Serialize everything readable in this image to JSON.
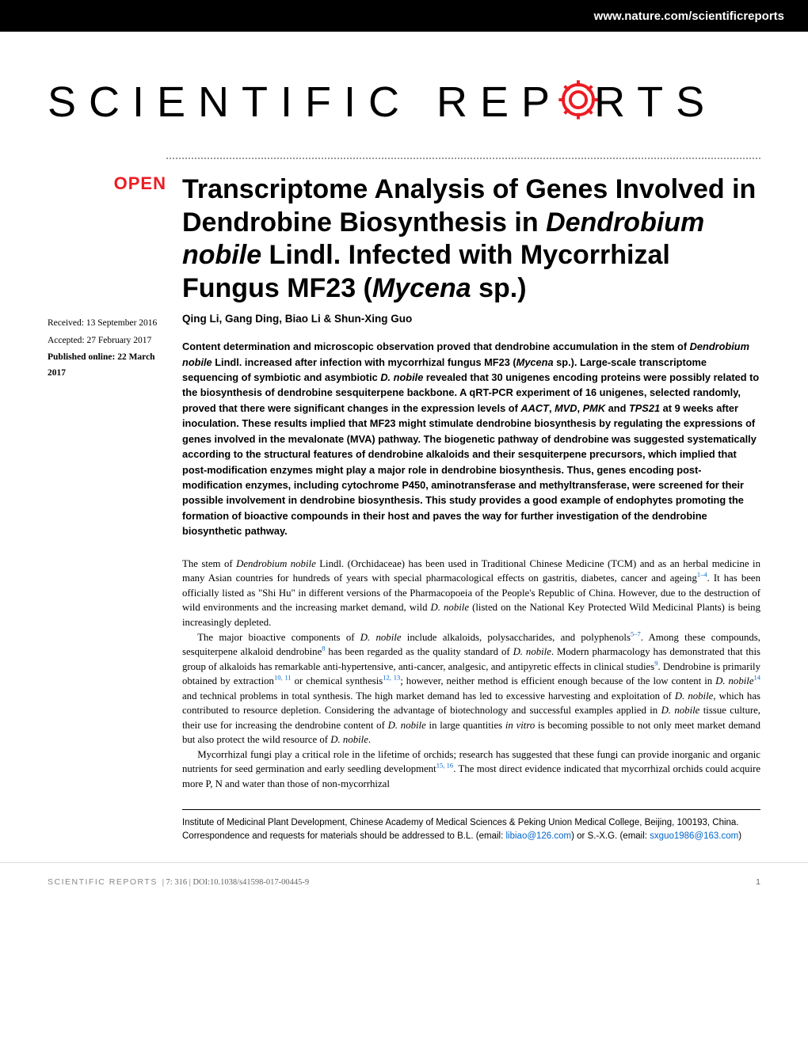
{
  "header": {
    "url": "www.nature.com/scientificreports"
  },
  "logo": {
    "text_before": "SCIENTIFIC",
    "text_after": "RTS",
    "text_rep": " REP",
    "accent_color": "#ec1c24",
    "font_size": 54,
    "letter_spacing": 16
  },
  "open_badge": {
    "label": "OPEN",
    "color": "#ec1c24"
  },
  "dates": {
    "received": "Received: 13 September 2016",
    "accepted": "Accepted: 27 February 2017",
    "published": "Published online: 22 March 2017"
  },
  "title": {
    "html": "Transcriptome Analysis of Genes Involved in Dendrobine Biosynthesis in <em>Dendrobium nobile</em> Lindl. Infected with Mycorrhizal Fungus MF23 (<em>Mycena</em> sp.)",
    "font_size": 34
  },
  "authors": "Qing Li, Gang Ding, Biao Li & Shun-Xing Guo",
  "abstract": {
    "html": "Content determination and microscopic observation proved that dendrobine accumulation in the stem of <em>Dendrobium nobile</em> Lindl. increased after infection with mycorrhizal fungus MF23 (<em>Mycena</em> sp.). Large-scale transcriptome sequencing of symbiotic and asymbiotic <em>D. nobile</em> revealed that 30 unigenes encoding proteins were possibly related to the biosynthesis of dendrobine sesquiterpene backbone. A qRT-PCR experiment of 16 unigenes, selected randomly, proved that there were significant changes in the expression levels of <em>AACT</em>, <em>MVD</em>, <em>PMK</em> and <em>TPS21</em> at 9 weeks after inoculation. These results implied that MF23 might stimulate dendrobine biosynthesis by regulating the expressions of genes involved in the mevalonate (MVA) pathway. The biogenetic pathway of dendrobine was suggested systematically according to the structural features of dendrobine alkaloids and their sesquiterpene precursors, which implied that post-modification enzymes might play a major role in dendrobine biosynthesis. Thus, genes encoding post-modification enzymes, including cytochrome P450, aminotransferase and methyltransferase, were screened for their possible involvement in dendrobine biosynthesis. This study provides a good example of endophytes promoting the formation of bioactive compounds in their host and paves the way for further investigation of the dendrobine biosynthetic pathway."
  },
  "body": {
    "paragraphs": [
      "The stem of <em>Dendrobium nobile</em> Lindl. (Orchidaceae) has been used in Traditional Chinese Medicine (TCM) and as an herbal medicine in many Asian countries for hundreds of years with special pharmacological effects on gastritis, diabetes, cancer and ageing<sup><a>1–4</a></sup>. It has been officially listed as \"Shi Hu\" in different versions of the Pharmacopoeia of the People's Republic of China. However, due to the destruction of wild environments and the increasing market demand, wild <em>D. nobile</em> (listed on the National Key Protected Wild Medicinal Plants) is being increasingly depleted.",
      "The major bioactive components of <em>D. nobile</em> include alkaloids, polysaccharides, and polyphenols<sup><a>5–7</a></sup>. Among these compounds, sesquiterpene alkaloid dendrobine<sup><a>8</a></sup> has been regarded as the quality standard of <em>D. nobile</em>. Modern pharmacology has demonstrated that this group of alkaloids has remarkable anti-hypertensive, anti-cancer, analgesic, and antipyretic effects in clinical studies<sup><a>9</a></sup>. Dendrobine is primarily obtained by extraction<sup><a>10, 11</a></sup> or chemical synthesis<sup><a>12, 13</a></sup>; however, neither method is efficient enough because of the low content in <em>D. nobile</em><sup><a>14</a></sup> and technical problems in total synthesis. The high market demand has led to excessive harvesting and exploitation of <em>D. nobile</em>, which has contributed to resource depletion. Considering the advantage of biotechnology and successful examples applied in <em>D. nobile</em> tissue culture, their use for increasing the dendrobine content of <em>D. nobile</em> in large quantities <em>in vitro</em> is becoming possible to not only meet market demand but also protect the wild resource of <em>D. nobile</em>.",
      "Mycorrhizal fungi play a critical role in the lifetime of orchids; research has suggested that these fungi can provide inorganic and organic nutrients for seed germination and early seedling development<sup><a>15, 16</a></sup>. The most direct evidence indicated that mycorrhizal orchids could acquire more P, N and water than those of non-mycorrhizal"
    ]
  },
  "affiliation": {
    "html": "Institute of Medicinal Plant Development, Chinese Academy of Medical Sciences & Peking Union Medical College, Beijing, 100193, China. Correspondence and requests for materials should be addressed to B.L. (email: <a>libiao@126.com</a>) or S.-X.G. (email: <a>sxguo1986@163.com</a>)"
  },
  "footer": {
    "journal": "SCIENTIFIC REPORTS",
    "citation": " | 7: 316  | DOI:10.1038/s41598-017-00445-9",
    "page": "1"
  },
  "colors": {
    "black": "#000000",
    "white": "#ffffff",
    "red": "#ec1c24",
    "link": "#0066cc",
    "footer_grey": "#888888",
    "rule_grey": "#dddddd"
  }
}
